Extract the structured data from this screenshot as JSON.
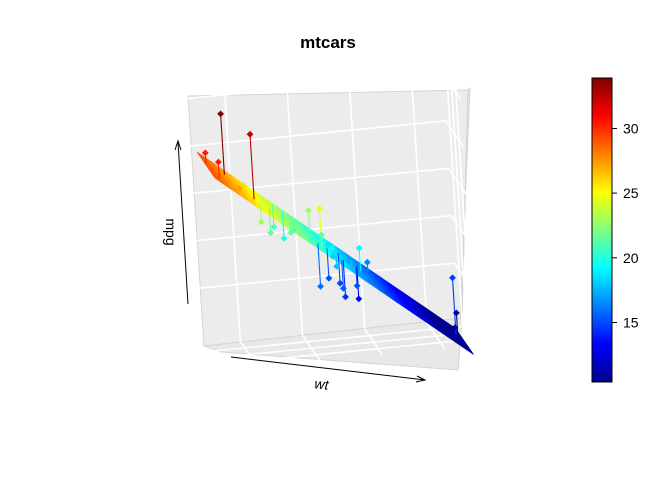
{
  "chart_data": {
    "type": "scatter",
    "subtype": "3d-scatter-with-fitted-plane",
    "title": "mtcars",
    "xlabel": "wt",
    "ylabel": "",
    "zlabel": "mpg",
    "colorbar": {
      "ticks": [
        15,
        20,
        25,
        30
      ],
      "range": [
        10.4,
        33.9
      ],
      "palette": "jet"
    },
    "points": [
      {
        "wt": 2.62,
        "mpg": 21.0
      },
      {
        "wt": 2.875,
        "mpg": 21.0
      },
      {
        "wt": 2.32,
        "mpg": 22.8
      },
      {
        "wt": 3.215,
        "mpg": 21.4
      },
      {
        "wt": 3.44,
        "mpg": 18.7
      },
      {
        "wt": 3.46,
        "mpg": 18.1
      },
      {
        "wt": 3.57,
        "mpg": 14.3
      },
      {
        "wt": 3.19,
        "mpg": 24.4
      },
      {
        "wt": 3.15,
        "mpg": 22.8
      },
      {
        "wt": 3.44,
        "mpg": 19.2
      },
      {
        "wt": 3.44,
        "mpg": 17.8
      },
      {
        "wt": 4.07,
        "mpg": 16.4
      },
      {
        "wt": 3.73,
        "mpg": 17.3
      },
      {
        "wt": 3.78,
        "mpg": 15.2
      },
      {
        "wt": 5.25,
        "mpg": 10.4
      },
      {
        "wt": 5.424,
        "mpg": 10.4
      },
      {
        "wt": 5.345,
        "mpg": 14.7
      },
      {
        "wt": 2.2,
        "mpg": 32.4
      },
      {
        "wt": 1.615,
        "mpg": 30.4
      },
      {
        "wt": 1.835,
        "mpg": 33.9
      },
      {
        "wt": 2.465,
        "mpg": 21.5
      },
      {
        "wt": 3.52,
        "mpg": 15.5
      },
      {
        "wt": 3.435,
        "mpg": 15.2
      },
      {
        "wt": 3.84,
        "mpg": 13.3
      },
      {
        "wt": 3.845,
        "mpg": 19.2
      },
      {
        "wt": 1.935,
        "mpg": 27.3
      },
      {
        "wt": 2.14,
        "mpg": 26.0
      },
      {
        "wt": 1.513,
        "mpg": 30.4
      },
      {
        "wt": 3.17,
        "mpg": 15.8
      },
      {
        "wt": 2.77,
        "mpg": 19.7
      },
      {
        "wt": 3.57,
        "mpg": 15.0
      },
      {
        "wt": 2.78,
        "mpg": 21.4
      }
    ]
  }
}
